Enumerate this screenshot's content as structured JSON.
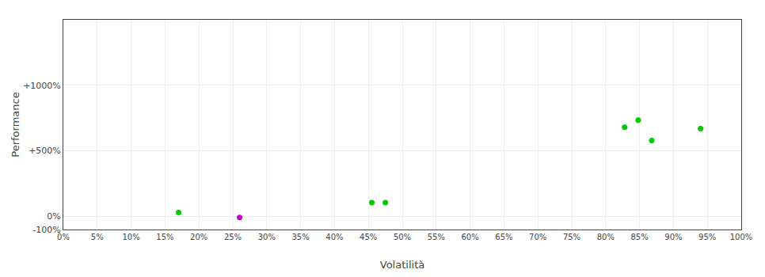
{
  "chart_data": {
    "type": "scatter",
    "xlabel": "Volatilità",
    "ylabel": "Performance",
    "x": [
      0.17,
      0.26,
      0.455,
      0.475,
      0.828,
      0.848,
      0.868,
      0.94
    ],
    "values": [
      0.3,
      -0.08,
      1.05,
      1.05,
      6.8,
      7.35,
      5.8,
      6.7
    ],
    "colors": [
      "#00cc00",
      "#cc00cc",
      "#00cc00",
      "#00cc00",
      "#00cc00",
      "#00cc00",
      "#00cc00",
      "#00cc00"
    ],
    "xlim": [
      0,
      1.0
    ],
    "ylim": [
      -1.0,
      15.0
    ],
    "xticks": [
      {
        "value": 0.0,
        "label": "0%"
      },
      {
        "value": 0.05,
        "label": "5%"
      },
      {
        "value": 0.1,
        "label": "10%"
      },
      {
        "value": 0.15,
        "label": "15%"
      },
      {
        "value": 0.2,
        "label": "20%"
      },
      {
        "value": 0.25,
        "label": "25%"
      },
      {
        "value": 0.3,
        "label": "30%"
      },
      {
        "value": 0.35,
        "label": "35%"
      },
      {
        "value": 0.4,
        "label": "40%"
      },
      {
        "value": 0.45,
        "label": "45%"
      },
      {
        "value": 0.5,
        "label": "50%"
      },
      {
        "value": 0.55,
        "label": "55%"
      },
      {
        "value": 0.6,
        "label": "60%"
      },
      {
        "value": 0.65,
        "label": "65%"
      },
      {
        "value": 0.7,
        "label": "70%"
      },
      {
        "value": 0.75,
        "label": "75%"
      },
      {
        "value": 0.8,
        "label": "80%"
      },
      {
        "value": 0.85,
        "label": "85%"
      },
      {
        "value": 0.9,
        "label": "90%"
      },
      {
        "value": 0.95,
        "label": "95%"
      },
      {
        "value": 1.0,
        "label": "100%"
      }
    ],
    "yticks": [
      {
        "value": -1.0,
        "label": "-100%"
      },
      {
        "value": 0.0,
        "label": "0%"
      },
      {
        "value": 5.0,
        "label": "+500%"
      },
      {
        "value": 10.0,
        "label": "+1000%"
      }
    ],
    "grid": true
  }
}
